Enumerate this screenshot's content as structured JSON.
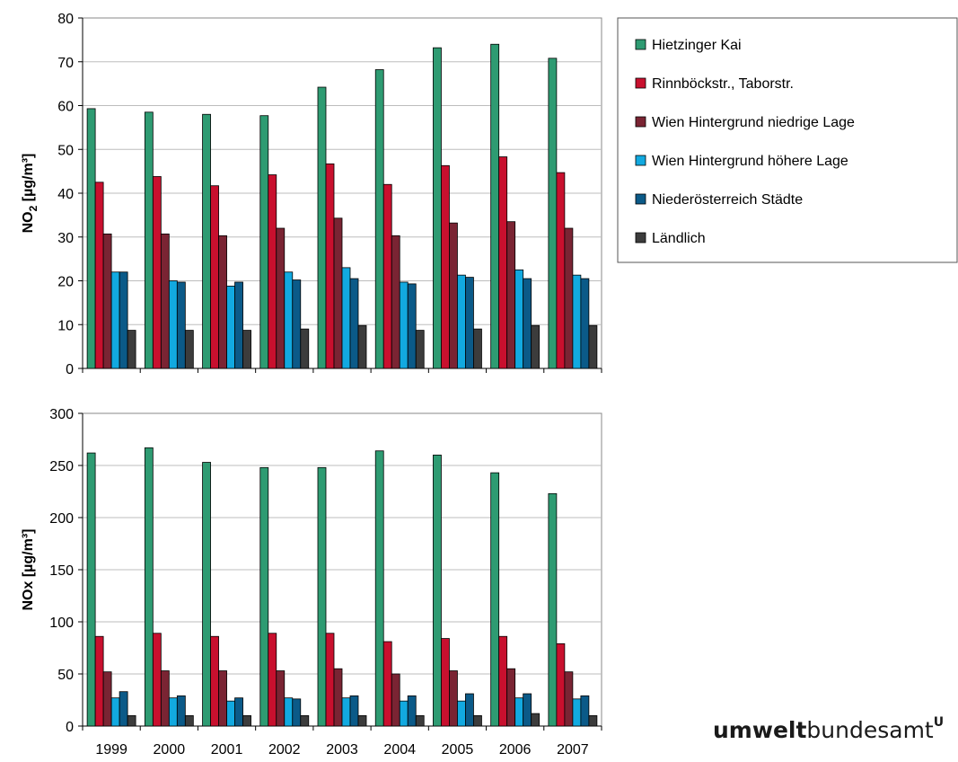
{
  "chart_data": {
    "type": "bar",
    "categories": [
      "1999",
      "2000",
      "2001",
      "2002",
      "2003",
      "2004",
      "2005",
      "2006",
      "2007"
    ],
    "legend": {
      "placement": "right"
    },
    "series_styles": [
      {
        "name": "Hietzinger Kai",
        "color": "#2e9b72"
      },
      {
        "name": "Rinnböckstr., Taborstr.",
        "color": "#c8102e"
      },
      {
        "name": "Wien Hintergrund niedrige Lage",
        "color": "#7a2433"
      },
      {
        "name": "Wien Hintergrund höhere Lage",
        "color": "#12a9e0"
      },
      {
        "name": "Niederösterreich Städte",
        "color": "#0b5a88"
      },
      {
        "name": "Ländlich",
        "color": "#3c3c3c"
      }
    ],
    "charts": [
      {
        "ylabel_main": "NO",
        "ylabel_sub": "2",
        "ylabel_rest": " [µg/m³]",
        "ylim": [
          0,
          80
        ],
        "yticks": [
          0,
          10,
          20,
          30,
          40,
          50,
          60,
          70,
          80
        ],
        "grid": true,
        "series": [
          {
            "name": "Hietzinger Kai",
            "values": [
              59.3,
              58.5,
              58.0,
              57.7,
              64.2,
              68.2,
              73.2,
              74.0,
              70.8
            ]
          },
          {
            "name": "Rinnböckstr., Taborstr.",
            "values": [
              42.5,
              43.8,
              41.7,
              44.2,
              46.7,
              42.0,
              46.3,
              48.3,
              44.7
            ]
          },
          {
            "name": "Wien Hintergrund niedrige Lage",
            "values": [
              30.7,
              30.7,
              30.3,
              32.0,
              34.3,
              30.3,
              33.2,
              33.5,
              32.0
            ]
          },
          {
            "name": "Wien Hintergrund höhere Lage",
            "values": [
              22.0,
              20.0,
              18.8,
              22.0,
              23.0,
              19.7,
              21.3,
              22.5,
              21.3
            ]
          },
          {
            "name": "Niederösterreich Städte",
            "values": [
              22.0,
              19.7,
              19.7,
              20.2,
              20.5,
              19.3,
              20.8,
              20.5,
              20.5
            ]
          },
          {
            "name": "Ländlich",
            "values": [
              8.7,
              8.7,
              8.7,
              9.0,
              9.8,
              8.7,
              9.0,
              9.8,
              9.8
            ]
          }
        ]
      },
      {
        "ylabel_main": "NOx",
        "ylabel_sub": "",
        "ylabel_rest": " [µg/m³]",
        "ylim": [
          0,
          300
        ],
        "yticks": [
          0,
          50,
          100,
          150,
          200,
          250,
          300
        ],
        "grid": true,
        "series": [
          {
            "name": "Hietzinger Kai",
            "values": [
              262,
              267,
              253,
              248,
              248,
              264,
              260,
              243,
              223
            ]
          },
          {
            "name": "Rinnböckstr., Taborstr.",
            "values": [
              86,
              89,
              86,
              89,
              89,
              81,
              84,
              86,
              79
            ]
          },
          {
            "name": "Wien Hintergrund niedrige Lage",
            "values": [
              52,
              53,
              53,
              53,
              55,
              50,
              53,
              55,
              52
            ]
          },
          {
            "name": "Wien Hintergrund höhere Lage",
            "values": [
              27,
              27,
              24,
              27,
              27,
              24,
              24,
              27,
              26
            ]
          },
          {
            "name": "Niederösterreich Städte",
            "values": [
              33,
              29,
              27,
              26,
              29,
              29,
              31,
              31,
              29
            ]
          },
          {
            "name": "Ländlich",
            "values": [
              10,
              10,
              10,
              10,
              10,
              10,
              10,
              12,
              10
            ]
          }
        ]
      }
    ]
  },
  "logo": {
    "bold_part": "umwelt",
    "light_part": "bundesamt",
    "mark": "U"
  }
}
